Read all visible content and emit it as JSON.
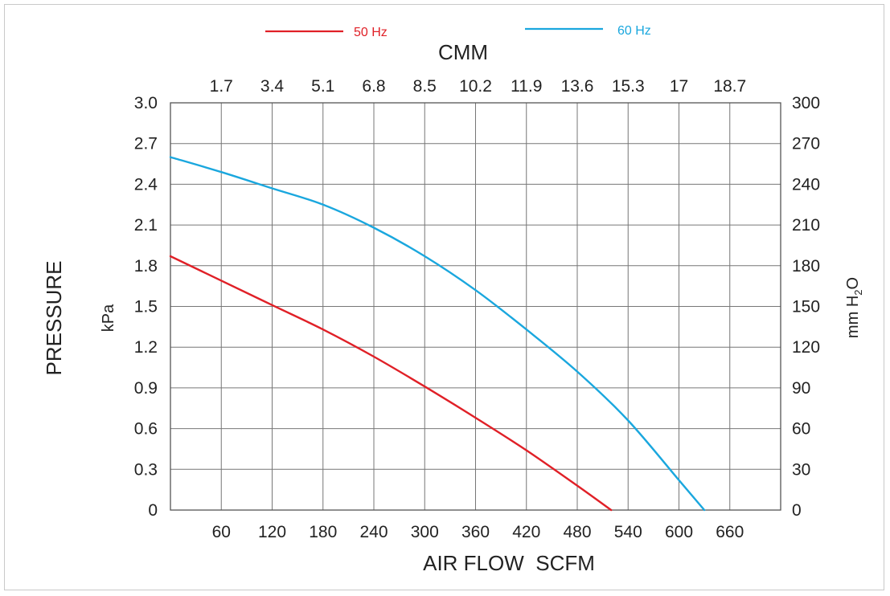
{
  "chart_data": {
    "type": "line",
    "title": "",
    "x_bottom": {
      "label": "AIR FLOW  SCFM",
      "range": [
        0,
        720
      ],
      "ticks": [
        60,
        120,
        180,
        240,
        300,
        360,
        420,
        480,
        540,
        600,
        660
      ]
    },
    "x_top": {
      "label": "CMM",
      "ticks": [
        "1.7",
        "3.4",
        "5.1",
        "6.8",
        "8.5",
        "10.2",
        "11.9",
        "13.6",
        "15.3",
        "17",
        "18.7"
      ]
    },
    "y_left": {
      "label": "PRESSURE",
      "unit": "kPa",
      "range": [
        0,
        3.0
      ],
      "ticks": [
        "0",
        "0.3",
        "0.6",
        "0.9",
        "1.2",
        "1.5",
        "1.8",
        "2.1",
        "2.4",
        "2.7",
        "3.0"
      ]
    },
    "y_right": {
      "unit_prefix": "mm H",
      "unit_sub": "2",
      "unit_suffix": "O",
      "ticks": [
        "0",
        "30",
        "60",
        "90",
        "120",
        "150",
        "180",
        "210",
        "240",
        "270",
        "300"
      ]
    },
    "grid": true,
    "legend_position": "top",
    "series": [
      {
        "name": "50 Hz",
        "color": "#e02027",
        "points": [
          [
            0,
            1.87
          ],
          [
            60,
            1.69
          ],
          [
            120,
            1.51
          ],
          [
            180,
            1.33
          ],
          [
            240,
            1.13
          ],
          [
            300,
            0.91
          ],
          [
            360,
            0.68
          ],
          [
            420,
            0.44
          ],
          [
            480,
            0.18
          ],
          [
            520,
            0.0
          ]
        ]
      },
      {
        "name": "60 Hz",
        "color": "#1aa7de",
        "points": [
          [
            0,
            2.6
          ],
          [
            60,
            2.49
          ],
          [
            120,
            2.37
          ],
          [
            180,
            2.25
          ],
          [
            240,
            2.08
          ],
          [
            300,
            1.87
          ],
          [
            360,
            1.62
          ],
          [
            420,
            1.33
          ],
          [
            480,
            1.02
          ],
          [
            540,
            0.66
          ],
          [
            600,
            0.22
          ],
          [
            630,
            0.0
          ]
        ]
      }
    ]
  }
}
